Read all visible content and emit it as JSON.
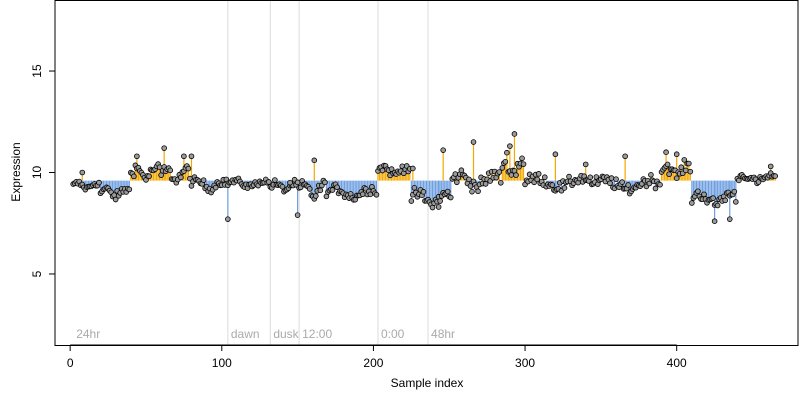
{
  "chart_data": {
    "type": "scatter",
    "xlabel": "Sample index",
    "ylabel": "Expression",
    "xlim": [
      -10,
      480
    ],
    "ylim": [
      1.5,
      18.5
    ],
    "baseline": 9.6,
    "x_ticks": [
      0,
      100,
      200,
      300,
      400
    ],
    "y_ticks": [
      5,
      10,
      15
    ],
    "colors": {
      "above": "#f5a800",
      "below": "#6f9fe0",
      "point_fill": "#9a9a9a",
      "marker_line": "#dcdcdc",
      "marker_text": "#aaaaaa"
    },
    "markers": [
      {
        "x": 2,
        "label": "24hr",
        "line": false
      },
      {
        "x": 104,
        "label": "dawn",
        "line": true
      },
      {
        "x": 132,
        "label": "dusk",
        "line": true
      },
      {
        "x": 151,
        "label": "12:00",
        "line": true
      },
      {
        "x": 203,
        "label": "0:00",
        "line": true
      },
      {
        "x": 236,
        "label": "48hr",
        "line": true
      }
    ],
    "segments": [
      {
        "x0": 2,
        "x1": 20,
        "mean": 9.35,
        "amp": 0.25
      },
      {
        "x0": 20,
        "x1": 40,
        "mean": 9.0,
        "amp": 0.35
      },
      {
        "x0": 40,
        "x1": 60,
        "mean": 10.0,
        "amp": 0.45
      },
      {
        "x0": 60,
        "x1": 80,
        "mean": 9.9,
        "amp": 0.45
      },
      {
        "x0": 80,
        "x1": 104,
        "mean": 9.4,
        "amp": 0.35
      },
      {
        "x0": 104,
        "x1": 132,
        "mean": 9.45,
        "amp": 0.25
      },
      {
        "x0": 132,
        "x1": 151,
        "mean": 9.3,
        "amp": 0.3
      },
      {
        "x0": 151,
        "x1": 170,
        "mean": 9.1,
        "amp": 0.5
      },
      {
        "x0": 170,
        "x1": 203,
        "mean": 9.0,
        "amp": 0.4
      },
      {
        "x0": 203,
        "x1": 225,
        "mean": 10.1,
        "amp": 0.35
      },
      {
        "x0": 225,
        "x1": 252,
        "mean": 8.7,
        "amp": 0.5
      },
      {
        "x0": 252,
        "x1": 285,
        "mean": 9.6,
        "amp": 0.55
      },
      {
        "x0": 285,
        "x1": 300,
        "mean": 10.3,
        "amp": 0.7
      },
      {
        "x0": 300,
        "x1": 345,
        "mean": 9.5,
        "amp": 0.45
      },
      {
        "x0": 345,
        "x1": 390,
        "mean": 9.4,
        "amp": 0.45
      },
      {
        "x0": 390,
        "x1": 410,
        "mean": 10.1,
        "amp": 0.45
      },
      {
        "x0": 410,
        "x1": 440,
        "mean": 8.7,
        "amp": 0.5
      },
      {
        "x0": 440,
        "x1": 466,
        "mean": 9.7,
        "amp": 0.3
      }
    ],
    "highlights": [
      {
        "x": 44,
        "y": 10.8
      },
      {
        "x": 62,
        "y": 11.2
      },
      {
        "x": 75,
        "y": 10.8
      },
      {
        "x": 80,
        "y": 10.8
      },
      {
        "x": 104,
        "y": 7.7
      },
      {
        "x": 145,
        "y": 9.5
      },
      {
        "x": 161,
        "y": 10.6
      },
      {
        "x": 226,
        "y": 10.2
      },
      {
        "x": 246,
        "y": 11.1
      },
      {
        "x": 266,
        "y": 11.5
      },
      {
        "x": 293,
        "y": 11.9
      },
      {
        "x": 290,
        "y": 11.3
      },
      {
        "x": 320,
        "y": 10.9
      },
      {
        "x": 340,
        "y": 10.4
      },
      {
        "x": 366,
        "y": 10.8
      },
      {
        "x": 393,
        "y": 11.0
      },
      {
        "x": 400,
        "y": 10.9
      },
      {
        "x": 425,
        "y": 7.6
      },
      {
        "x": 435,
        "y": 7.7
      },
      {
        "x": 462,
        "y": 10.3
      },
      {
        "x": 8,
        "y": 10.0
      },
      {
        "x": 243,
        "y": 8.3
      },
      {
        "x": 150,
        "y": 7.9
      }
    ]
  }
}
